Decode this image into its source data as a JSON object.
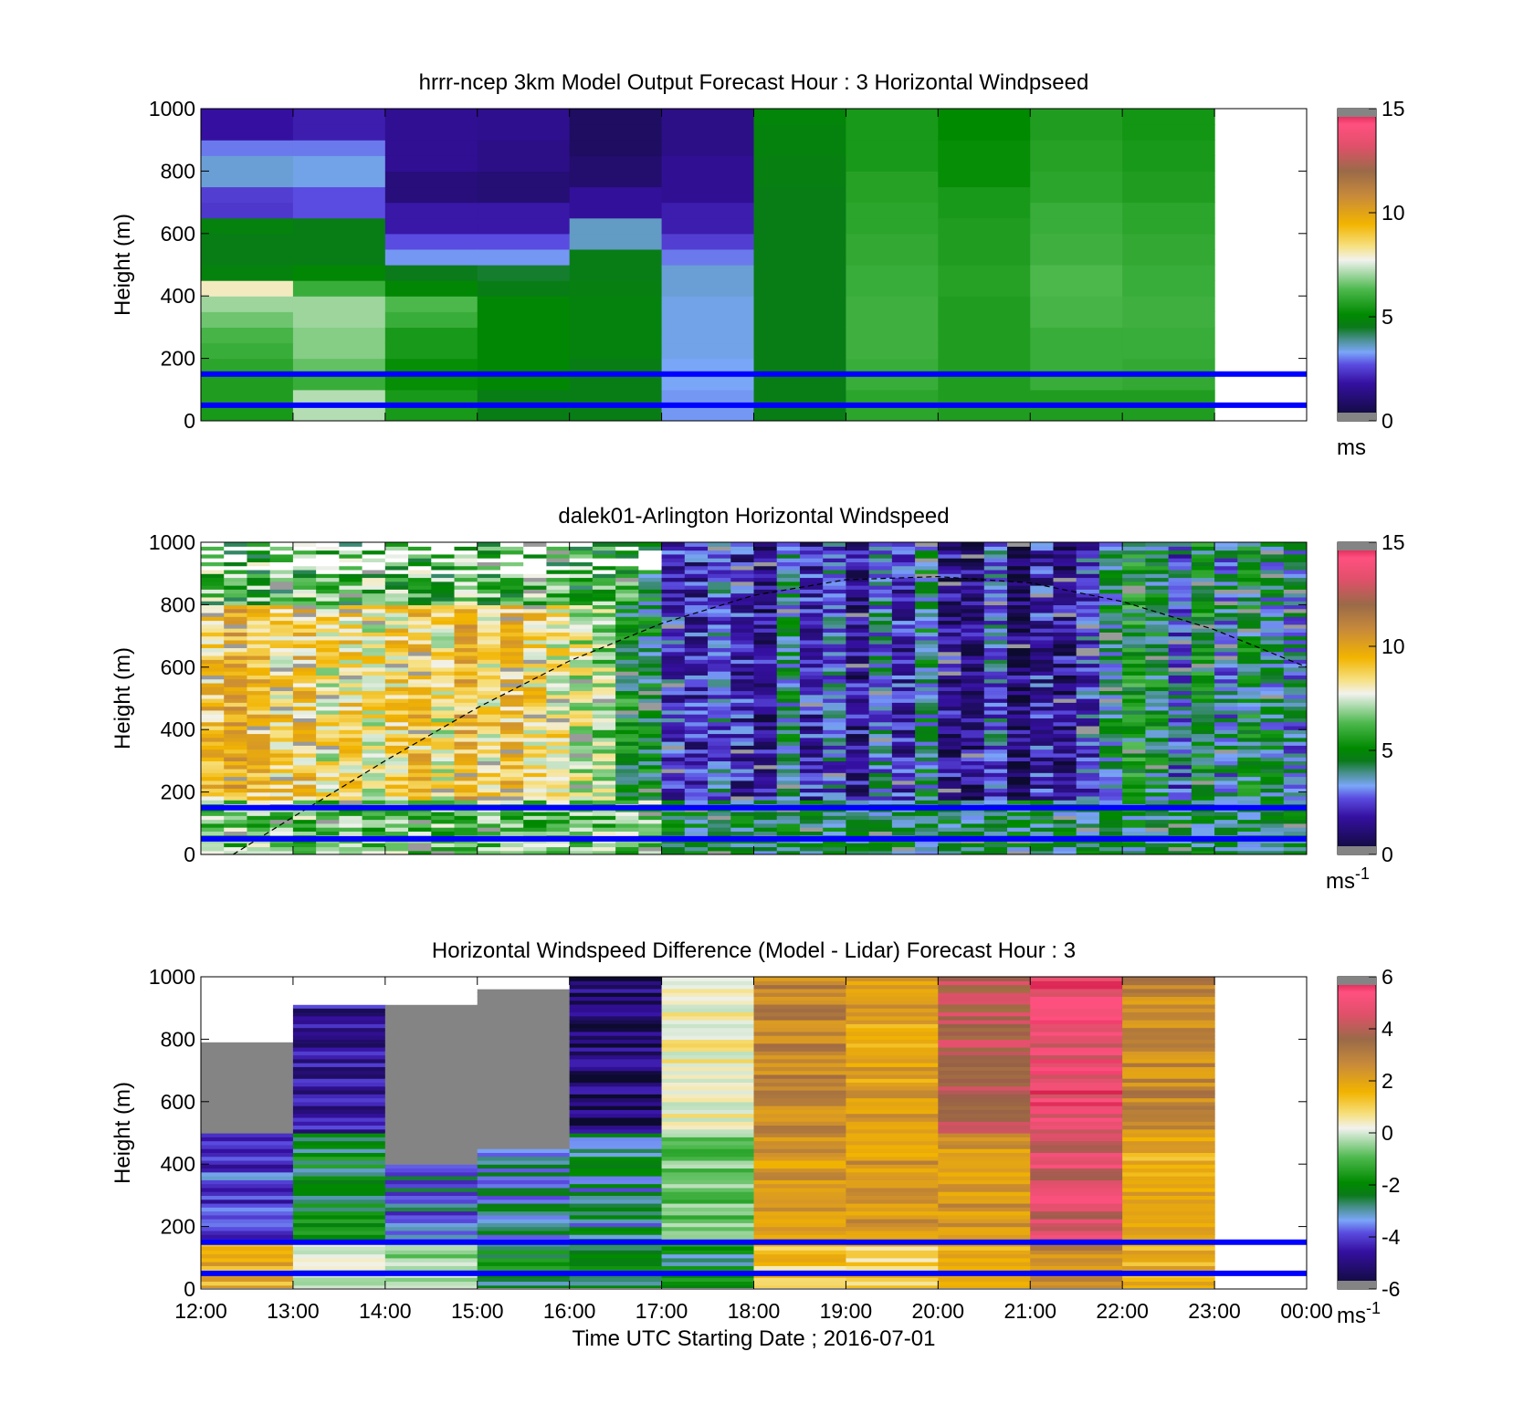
{
  "panels": [
    {
      "title": "hrrr-ncep 3km Model Output   Forecast Hour : 3 Horizontal Windpseed",
      "ylabel": "Height (m)",
      "yticks": [
        "0",
        "200",
        "400",
        "600",
        "800",
        "1000"
      ],
      "colorbar_ticks": [
        "0",
        "5",
        "10",
        "15"
      ],
      "colorbar_unit": "ms",
      "colorbar_unit_sup": ""
    },
    {
      "title": "dalek01-Arlington  Horizontal Windspeed",
      "ylabel": "Height (m)",
      "yticks": [
        "0",
        "200",
        "400",
        "600",
        "800",
        "1000"
      ],
      "colorbar_ticks": [
        "0",
        "5",
        "10",
        "15"
      ],
      "colorbar_unit": "ms",
      "colorbar_unit_sup": "-1"
    },
    {
      "title": "Horizontal Windspeed Difference (Model - Lidar) Forecast Hour : 3",
      "ylabel": "Height (m)",
      "yticks": [
        "0",
        "200",
        "400",
        "600",
        "800",
        "1000"
      ],
      "colorbar_ticks": [
        "-6",
        "-4",
        "-2",
        "0",
        "2",
        "4",
        "6"
      ],
      "colorbar_unit": "ms",
      "colorbar_unit_sup": "-1"
    }
  ],
  "xticks": [
    "12:00",
    "13:00",
    "14:00",
    "15:00",
    "16:00",
    "17:00",
    "18:00",
    "19:00",
    "20:00",
    "21:00",
    "22:00",
    "23:00",
    "00:00"
  ],
  "xlabel": "Time UTC  Starting Date ; 2016-07-01",
  "chart_data": [
    {
      "type": "heatmap",
      "title": "hrrr-ncep 3km Model Output   Forecast Hour : 3 Horizontal Windpseed",
      "xlabel": "",
      "ylabel": "Height (m)",
      "x_range_hours_utc": [
        12,
        24
      ],
      "ylim": [
        0,
        1000
      ],
      "colorbar": {
        "range": [
          0,
          15
        ],
        "unit": "ms"
      },
      "columns_start_hour": [
        12,
        13,
        14,
        15,
        16,
        17,
        18,
        19,
        20,
        21,
        22
      ],
      "heights_m": [
        25,
        75,
        125,
        175,
        225,
        275,
        325,
        375,
        425,
        475,
        525,
        575,
        625,
        675,
        725,
        775,
        825,
        875,
        925,
        975
      ],
      "windspeed_ms": [
        [
          5.5,
          5.6,
          5.6,
          5.8,
          6.0,
          6.2,
          6.6,
          7.0,
          8.0,
          4.8,
          4.6,
          4.6,
          4.8,
          2.4,
          2.5,
          3.5,
          3.5,
          3.0,
          1.8,
          1.8
        ],
        [
          7.2,
          7.2,
          6.0,
          6.5,
          6.8,
          6.8,
          7.0,
          7.0,
          6.0,
          5.0,
          4.6,
          4.6,
          4.6,
          2.7,
          2.7,
          3.4,
          3.4,
          3.0,
          2.0,
          2.0
        ],
        [
          5.5,
          5.5,
          5.2,
          5.2,
          5.5,
          5.5,
          6.0,
          6.3,
          5.0,
          4.5,
          3.2,
          2.7,
          1.9,
          1.9,
          1.2,
          1.2,
          1.6,
          1.6,
          1.6,
          1.6
        ],
        [
          4.6,
          4.6,
          5.0,
          5.0,
          5.0,
          5.0,
          5.0,
          5.0,
          4.6,
          4.4,
          3.2,
          2.7,
          1.9,
          1.9,
          1.1,
          1.1,
          1.4,
          1.4,
          1.5,
          1.5
        ],
        [
          4.6,
          4.6,
          4.6,
          4.6,
          4.8,
          4.8,
          4.8,
          4.8,
          4.7,
          4.6,
          4.6,
          3.6,
          3.6,
          1.7,
          1.7,
          1.0,
          1.0,
          0.8,
          0.8,
          0.8
        ],
        [
          3.2,
          3.2,
          3.3,
          3.3,
          3.4,
          3.4,
          3.4,
          3.4,
          3.5,
          3.5,
          3.0,
          2.5,
          2.0,
          2.0,
          1.6,
          1.6,
          1.6,
          1.4,
          1.4,
          1.4
        ],
        [
          4.6,
          4.6,
          4.6,
          4.6,
          4.6,
          4.6,
          4.6,
          4.6,
          4.6,
          4.6,
          4.6,
          4.6,
          4.6,
          4.6,
          4.6,
          4.7,
          4.7,
          4.8,
          4.8,
          4.9
        ],
        [
          5.8,
          5.8,
          6.0,
          6.0,
          6.1,
          6.1,
          6.1,
          6.1,
          6.0,
          6.0,
          5.9,
          5.9,
          5.8,
          5.8,
          5.7,
          5.7,
          5.5,
          5.5,
          5.5,
          5.5
        ],
        [
          5.6,
          5.6,
          5.6,
          5.6,
          5.6,
          5.6,
          5.6,
          5.6,
          5.7,
          5.7,
          5.6,
          5.6,
          5.6,
          5.5,
          5.5,
          5.2,
          5.2,
          5.2,
          5.1,
          5.1
        ],
        [
          5.6,
          5.6,
          6.0,
          6.0,
          6.0,
          6.0,
          6.2,
          6.2,
          6.3,
          6.3,
          6.1,
          6.1,
          6.0,
          6.0,
          5.8,
          5.8,
          5.7,
          5.7,
          5.6,
          5.6
        ],
        [
          5.6,
          5.6,
          5.9,
          5.9,
          6.0,
          6.0,
          6.1,
          6.1,
          6.0,
          6.0,
          5.9,
          5.9,
          5.8,
          5.8,
          5.6,
          5.6,
          5.5,
          5.5,
          5.4,
          5.4
        ]
      ],
      "reference_lines_m": [
        50,
        150
      ]
    },
    {
      "type": "heatmap",
      "title": "dalek01-Arlington  Horizontal Windspeed",
      "xlabel": "",
      "ylabel": "Height (m)",
      "x_range_hours_utc": [
        12,
        24
      ],
      "ylim": [
        0,
        1000
      ],
      "colorbar": {
        "range": [
          0,
          15
        ],
        "unit": "ms-1"
      },
      "time_bins_start_hour": [
        12.0,
        12.25,
        12.5,
        12.75,
        13.0,
        13.25,
        13.5,
        13.75,
        14.0,
        14.25,
        14.5,
        14.75,
        15.0,
        15.25,
        15.5,
        15.75,
        16.0,
        16.25,
        16.5,
        16.75,
        17.0,
        17.25,
        17.5,
        17.75,
        18.0,
        18.25,
        18.5,
        18.75,
        19.0,
        19.25,
        19.5,
        19.75,
        20.0,
        20.25,
        20.5,
        20.75,
        21.0,
        21.25,
        21.5,
        21.75,
        22.0,
        22.25,
        22.5,
        22.75,
        23.0,
        23.25,
        23.5,
        23.75
      ],
      "column_mean_windspeed_ms": [
        9.0,
        9.5,
        9.2,
        8.5,
        9.0,
        8.0,
        8.5,
        8.0,
        8.5,
        9.0,
        8.0,
        9.5,
        8.5,
        9.0,
        8.5,
        8.0,
        7.5,
        7.0,
        5.0,
        4.5,
        2.5,
        2.0,
        3.0,
        2.0,
        1.5,
        4.0,
        2.0,
        3.0,
        1.5,
        3.5,
        2.0,
        4.0,
        1.5,
        1.5,
        3.0,
        1.0,
        2.0,
        1.5,
        2.5,
        4.0,
        5.0,
        4.5,
        3.0,
        5.0,
        3.5,
        4.5,
        4.0,
        3.5
      ],
      "boundary_layer_curve": {
        "hours_utc": [
          12.35,
          13,
          14,
          15,
          16,
          17,
          18,
          19,
          20,
          21,
          22,
          23,
          24
        ],
        "height_m": [
          0,
          120,
          300,
          470,
          620,
          740,
          830,
          880,
          890,
          870,
          810,
          720,
          600
        ]
      },
      "reference_lines_m": [
        50,
        150
      ]
    },
    {
      "type": "heatmap",
      "title": "Horizontal Windspeed Difference (Model - Lidar) Forecast Hour : 3",
      "xlabel": "Time UTC  Starting Date ; 2016-07-01",
      "ylabel": "Height (m)",
      "x_range_hours_utc": [
        12,
        24
      ],
      "ylim": [
        0,
        1000
      ],
      "colorbar": {
        "range": [
          -6,
          6
        ],
        "unit": "ms-1"
      },
      "columns_start_hour": [
        12,
        13,
        14,
        15,
        16,
        17,
        18,
        19,
        20,
        21,
        22
      ],
      "column_data_top_m": [
        790,
        910,
        910,
        960,
        1000,
        1000,
        1000,
        1000,
        1000,
        1000,
        1000
      ],
      "approx_difference_ms": [
        {
          "hour": 12,
          "0_150": 1.5,
          "150_500": -4.5,
          "500_790": "missing"
        },
        {
          "hour": 13,
          "0_150": -0.5,
          "150_500": -3.0,
          "500_910": -5.0
        },
        {
          "hour": 14,
          "0_150": -1.0,
          "150_400": -4.0,
          "400_910": "missing"
        },
        {
          "hour": 15,
          "0_150": -3.0,
          "150_450": -3.5,
          "450_960": "missing"
        },
        {
          "hour": 16,
          "0_150": -3.0,
          "150_500": -3.5,
          "500_1000": -5.5
        },
        {
          "hour": 17,
          "0_150": -3.0,
          "150_500": -1.5,
          "500_1000": 0.0
        },
        {
          "hour": 18,
          "0_150": 1.0,
          "150_500": 2.0,
          "500_1000": 2.5
        },
        {
          "hour": 19,
          "0_150": 1.0,
          "150_500": 2.0,
          "500_1000": 1.8
        },
        {
          "hour": 20,
          "0_150": 1.2,
          "150_500": 2.0,
          "500_1000": 4.0
        },
        {
          "hour": 21,
          "0_150": 2.5,
          "150_500": 4.5,
          "500_1000": 5.0
        },
        {
          "hour": 22,
          "0_150": 1.5,
          "150_500": 1.5,
          "500_1000": 2.5
        }
      ],
      "reference_lines_m": [
        50,
        150
      ]
    }
  ]
}
